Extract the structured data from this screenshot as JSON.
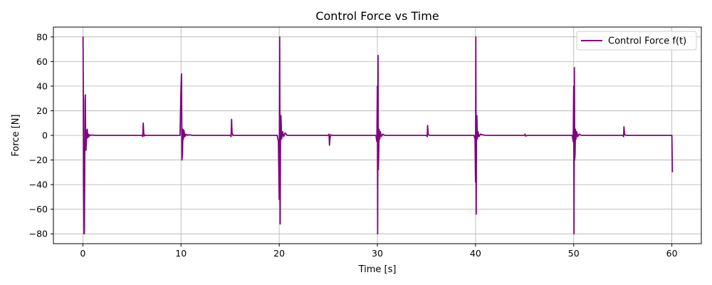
{
  "chart_data": {
    "type": "line",
    "title": "Control Force vs Time",
    "xlabel": "Time [s]",
    "ylabel": "Force [N]",
    "xlim": [
      -3,
      63
    ],
    "ylim": [
      -88,
      88
    ],
    "xticks": [
      0,
      10,
      20,
      30,
      40,
      50,
      60
    ],
    "yticks": [
      -80,
      -60,
      -40,
      -20,
      0,
      20,
      40,
      60,
      80
    ],
    "grid": true,
    "legend_position": "top-right",
    "series": [
      {
        "name": "Control Force f(t)",
        "color": "#800080",
        "x": [
          0.0,
          0.02,
          0.05,
          0.08,
          0.12,
          0.15,
          0.18,
          0.22,
          0.25,
          0.28,
          0.32,
          0.36,
          0.4,
          0.45,
          0.5,
          0.55,
          0.62,
          0.7,
          0.8,
          0.95,
          1.2,
          1.5,
          6.0,
          6.1,
          6.15,
          6.2,
          6.25,
          6.3,
          6.4,
          6.6,
          9.9,
          10.0,
          10.05,
          10.1,
          10.15,
          10.2,
          10.25,
          10.3,
          10.4,
          10.5,
          10.65,
          10.8,
          11.2,
          15.0,
          15.1,
          15.15,
          15.2,
          15.3,
          15.5,
          19.8,
          19.92,
          20.0,
          20.05,
          20.1,
          20.14,
          20.18,
          20.25,
          20.35,
          20.45,
          20.6,
          20.8,
          21.1,
          25.0,
          25.08,
          25.12,
          25.18,
          25.25,
          25.4,
          29.85,
          29.95,
          30.0,
          30.03,
          30.07,
          30.1,
          30.14,
          30.18,
          30.24,
          30.3,
          30.4,
          30.55,
          30.75,
          31.2,
          35.0,
          35.08,
          35.12,
          35.18,
          35.3,
          39.85,
          39.95,
          40.0,
          40.03,
          40.07,
          40.1,
          40.14,
          40.18,
          40.25,
          40.35,
          40.5,
          40.7,
          41.0,
          45.0,
          45.05,
          45.1,
          45.3,
          49.85,
          49.95,
          50.0,
          50.03,
          50.07,
          50.1,
          50.14,
          50.18,
          50.24,
          50.3,
          50.4,
          50.55,
          50.8,
          51.2,
          55.0,
          55.08,
          55.12,
          55.18,
          55.3,
          59.8,
          59.95,
          60.0,
          60.05
        ],
        "y": [
          80,
          80,
          30,
          -40,
          -80,
          -80,
          -45,
          28,
          33,
          5,
          -12,
          -5,
          3,
          5,
          -2,
          1,
          -1,
          0.5,
          0,
          0.3,
          0,
          0,
          0,
          -1,
          10,
          2,
          -0.5,
          0.3,
          0,
          0,
          0,
          40,
          50,
          -20,
          -15,
          5,
          -3,
          4,
          -1,
          1,
          0,
          0.5,
          0,
          0,
          -1,
          13,
          2,
          0,
          0,
          0,
          -5,
          -52,
          80,
          -72,
          15,
          16,
          -3,
          3,
          -1,
          2,
          0,
          0,
          0,
          1,
          -8,
          -2,
          0.5,
          0,
          0,
          -5,
          40,
          -80,
          65,
          -28,
          -15,
          5,
          -3,
          3,
          -1,
          1,
          0,
          0,
          0,
          -1,
          8,
          1,
          0,
          0,
          -3,
          -38,
          80,
          -64,
          15,
          16,
          -3,
          3,
          -1,
          1,
          0.5,
          0,
          0,
          1,
          -0.5,
          0,
          0,
          -5,
          40,
          -80,
          55,
          -20,
          -15,
          5,
          -3,
          3,
          -1,
          1,
          0,
          0,
          0,
          -1,
          7,
          1,
          0,
          0,
          0,
          0,
          -30
        ]
      }
    ]
  }
}
